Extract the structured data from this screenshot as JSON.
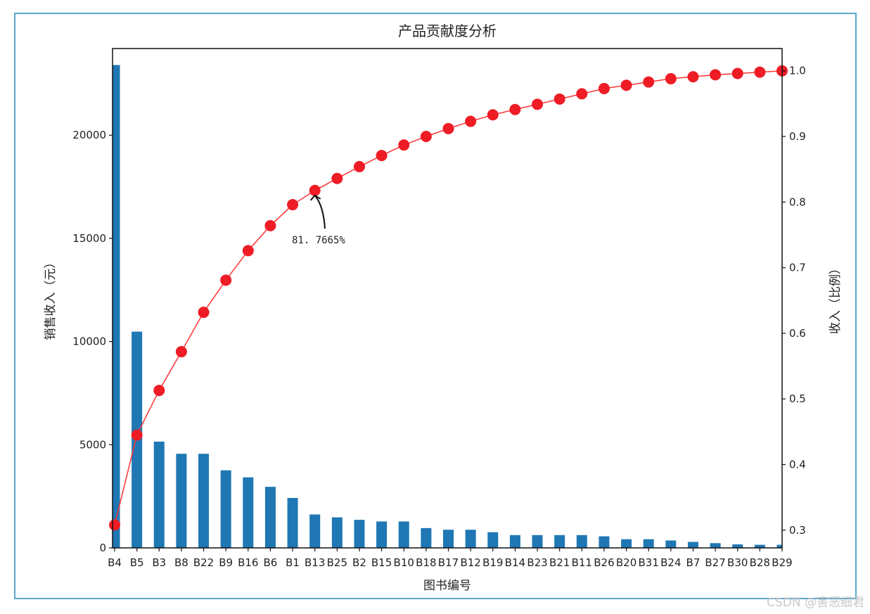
{
  "watermark": "CSDN @害恶细君",
  "colors": {
    "bar": "#1f77b4",
    "line": "#ff3333",
    "marker": "#ee1c25",
    "frame": "#5aa6cc"
  },
  "chart_data": {
    "type": "bar",
    "title": "产品贡献度分析",
    "xlabel": "图书编号",
    "ylabel": "销售收入（元）",
    "y2label": "收入（比例）",
    "categories": [
      "B4",
      "B5",
      "B3",
      "B8",
      "B22",
      "B9",
      "B16",
      "B6",
      "B1",
      "B13",
      "B25",
      "B2",
      "B15",
      "B10",
      "B18",
      "B17",
      "B12",
      "B19",
      "B14",
      "B23",
      "B21",
      "B11",
      "B26",
      "B20",
      "B31",
      "B24",
      "B7",
      "B27",
      "B30",
      "B28",
      "B29"
    ],
    "series": [
      {
        "type": "bar",
        "axis": "left",
        "values": [
          23400,
          10480,
          5150,
          4560,
          4560,
          3760,
          3420,
          2960,
          2420,
          1620,
          1480,
          1360,
          1280,
          1280,
          960,
          880,
          880,
          760,
          620,
          620,
          620,
          620,
          560,
          420,
          420,
          360,
          290,
          230,
          170,
          150,
          150
        ]
      },
      {
        "type": "line",
        "axis": "right",
        "values": [
          0.308,
          0.445,
          0.513,
          0.572,
          0.632,
          0.681,
          0.726,
          0.764,
          0.796,
          0.8177,
          0.836,
          0.854,
          0.871,
          0.887,
          0.9,
          0.912,
          0.923,
          0.933,
          0.941,
          0.949,
          0.957,
          0.965,
          0.973,
          0.978,
          0.983,
          0.988,
          0.991,
          0.994,
          0.996,
          0.998,
          1.0
        ]
      }
    ],
    "ylim": [
      0,
      24200
    ],
    "yticks": [
      0,
      5000,
      10000,
      15000,
      20000
    ],
    "y2lim": [
      0.273,
      1.034
    ],
    "y2ticks": [
      0.3,
      0.4,
      0.5,
      0.6,
      0.7,
      0.8,
      0.9,
      1.0
    ],
    "annotation": {
      "text": "81. 7665%",
      "category": "B13",
      "value": 0.8177
    }
  }
}
